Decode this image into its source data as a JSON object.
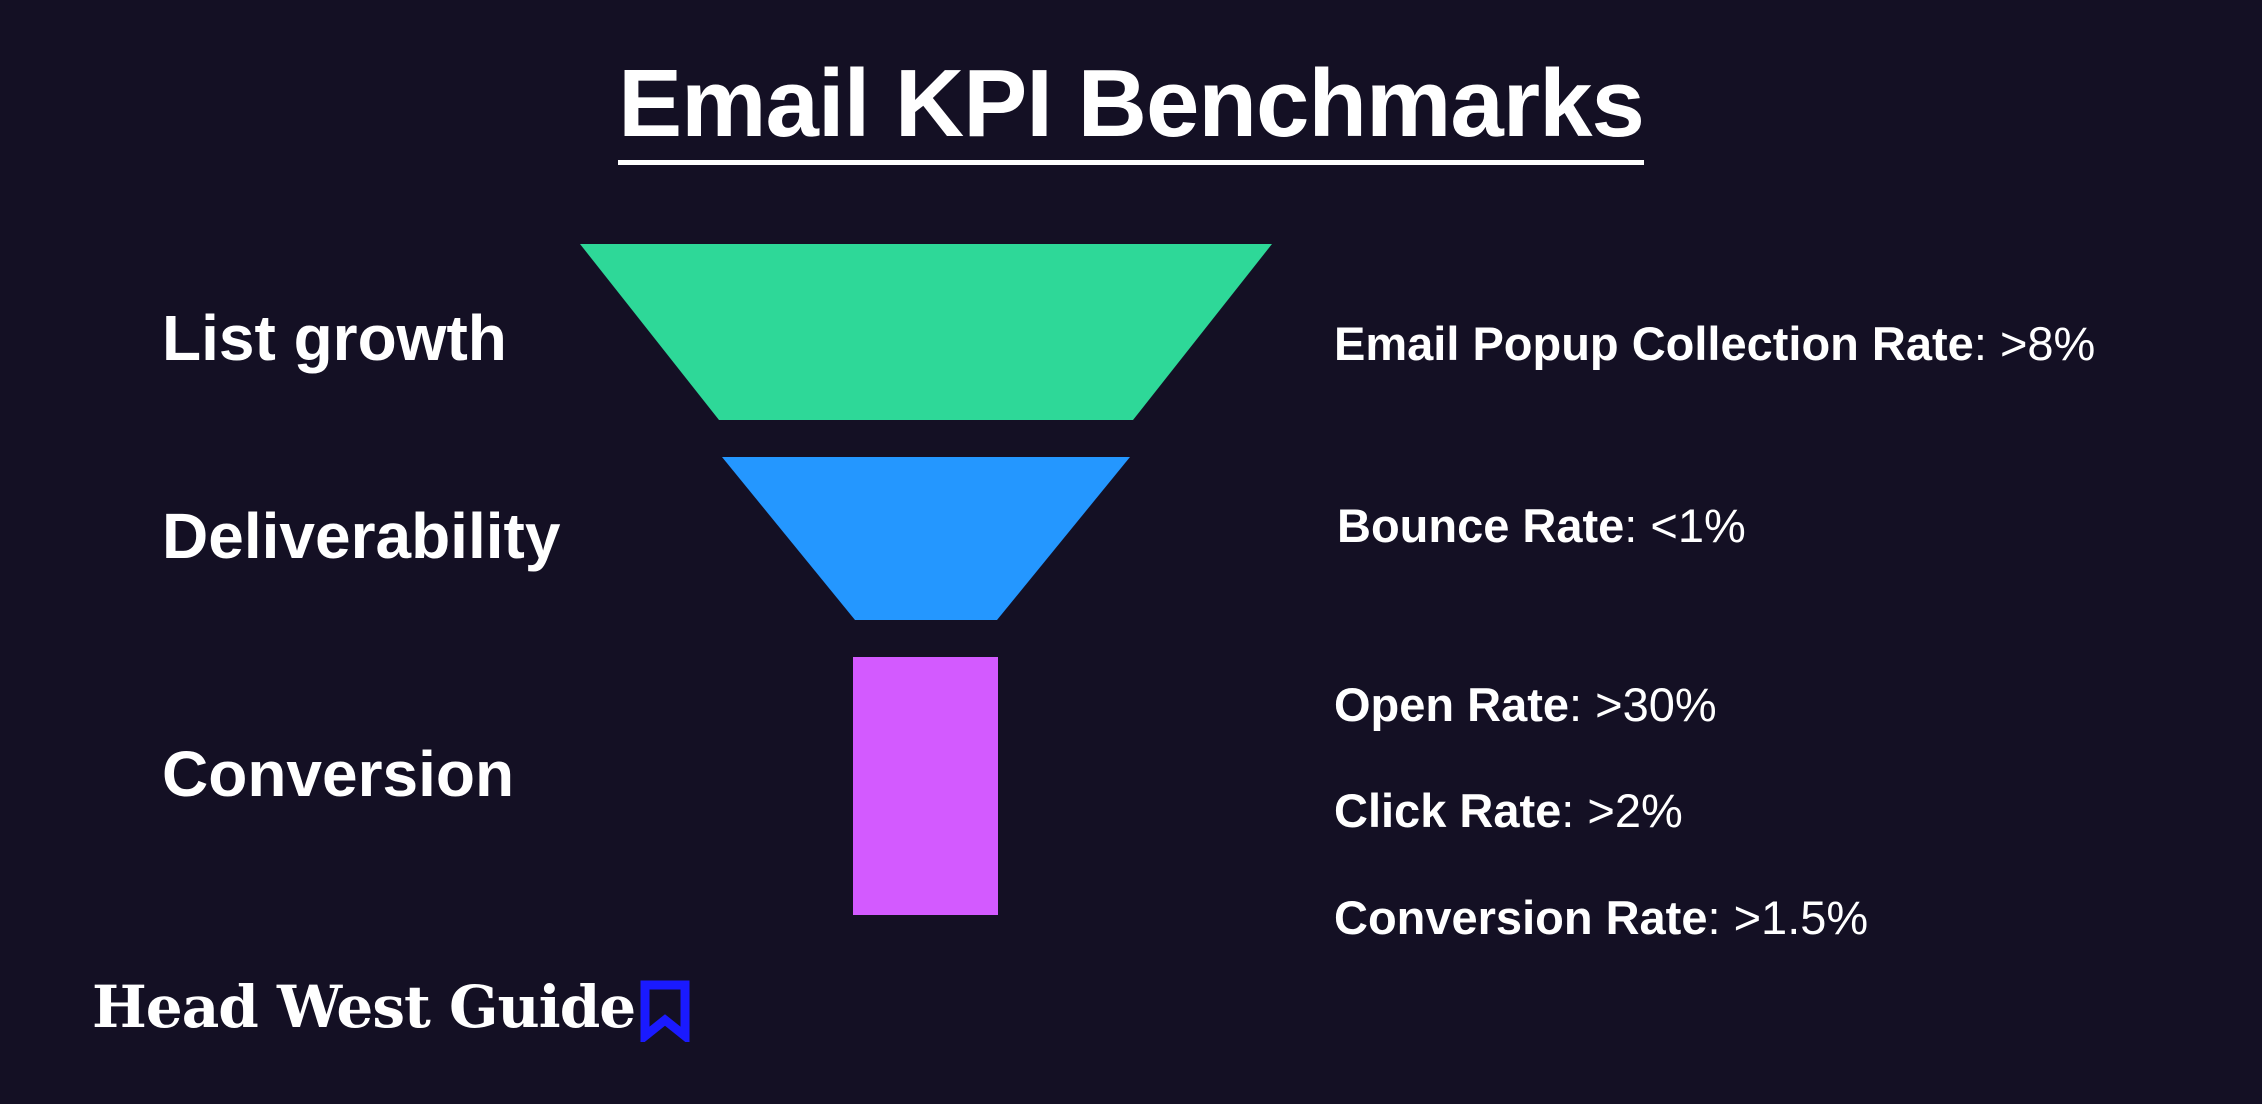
{
  "title": "Email KPI Benchmarks",
  "stages": [
    {
      "label": "List growth",
      "color": "#2ed898"
    },
    {
      "label": "Deliverability",
      "color": "#2497ff"
    },
    {
      "label": "Conversion",
      "color": "#d35aff"
    }
  ],
  "metrics": [
    {
      "name": "Email Popup Collection Rate",
      "value": ">8%"
    },
    {
      "name": "Bounce Rate",
      "value": "<1%"
    },
    {
      "name": "Open Rate",
      "value": ">30%"
    },
    {
      "name": "Click Rate",
      "value": ">2%"
    },
    {
      "name": "Conversion Rate",
      "value": ">1.5%"
    }
  ],
  "brand": {
    "name": "Head West Guide",
    "icon": "bookmark-icon",
    "icon_color": "#1a1aff"
  }
}
